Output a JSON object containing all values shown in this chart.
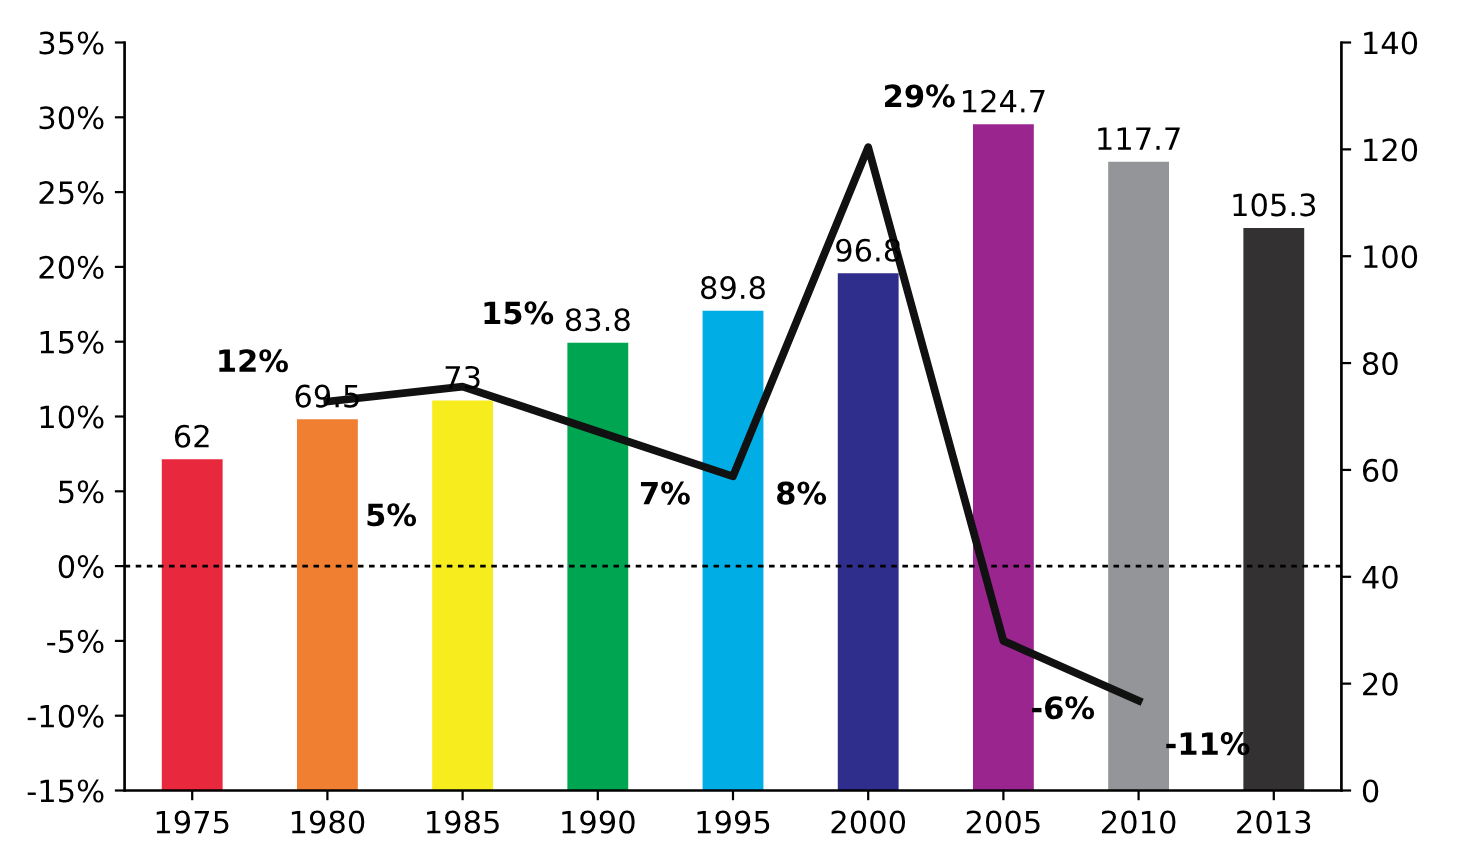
{
  "chart_data": {
    "type": "bar",
    "categories": [
      "1975",
      "1980",
      "1985",
      "1990",
      "1995",
      "2000",
      "2005",
      "2010",
      "2013"
    ],
    "ylim": [
      -15,
      35
    ],
    "yticks": [
      {
        "value": -15,
        "label": "-15%"
      },
      {
        "value": -10,
        "label": "-10%"
      },
      {
        "value": -5,
        "label": "-5%"
      },
      {
        "value": 0,
        "label": "0%"
      },
      {
        "value": 5,
        "label": "5%"
      },
      {
        "value": 10,
        "label": "10%"
      },
      {
        "value": 15,
        "label": "15%"
      },
      {
        "value": 20,
        "label": "20%"
      },
      {
        "value": 25,
        "label": "25%"
      },
      {
        "value": 30,
        "label": "30%"
      },
      {
        "value": 35,
        "label": "35%"
      }
    ],
    "y2lim": [
      0,
      140
    ],
    "y2ticks": [
      0,
      20,
      40,
      60,
      80,
      100,
      120,
      140
    ],
    "series": [
      {
        "axis": "y2",
        "colors": [
          "#e8283c",
          "#f07f32",
          "#f7ec1e",
          "#00a551",
          "#00aee5",
          "#302e8c",
          "#9b258f",
          "#939598",
          "#333132"
        ],
        "values": [
          62,
          69.5,
          73,
          83.8,
          89.8,
          96.8,
          124.7,
          117.7,
          105.3
        ],
        "value_labels": [
          "62",
          "69.5",
          "73",
          "83.8",
          "89.8",
          "96.8",
          "124.7",
          "117.7",
          "105.3"
        ]
      },
      {
        "type": "line",
        "axis": "y",
        "color": "#111111",
        "values": [
          null,
          11,
          12,
          9,
          6,
          28,
          -5,
          -9,
          null
        ]
      }
    ],
    "annotations": [
      "12%",
      "5%",
      "15%",
      "7%",
      "8%",
      "29%",
      "-6%",
      "-11%"
    ],
    "ref_lines": [
      {
        "axis": "y",
        "value": 0,
        "line_style": "dotted",
        "color": "#000000"
      }
    ],
    "grid": false,
    "legend": false
  }
}
